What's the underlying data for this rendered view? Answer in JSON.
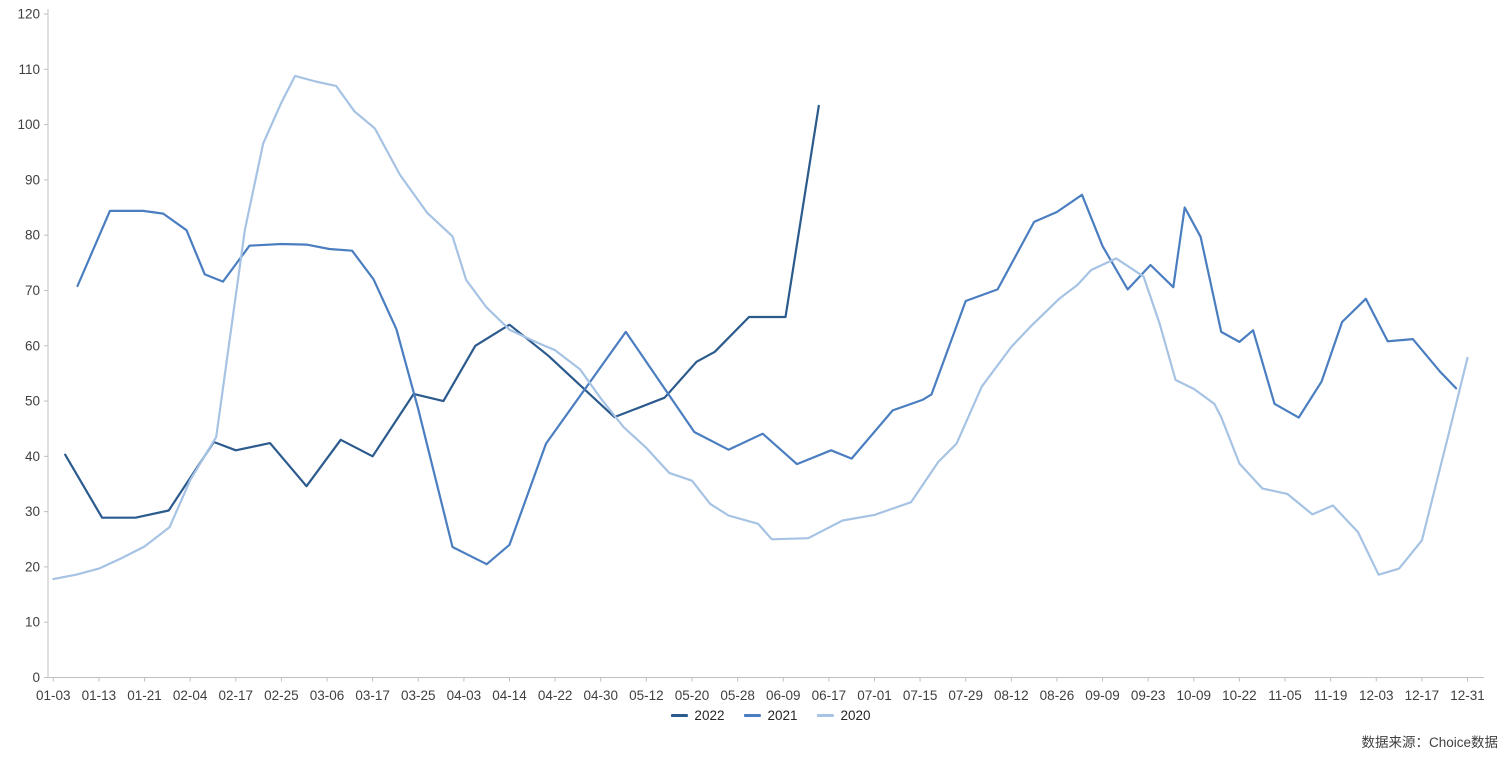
{
  "source_note": "数据来源：Choice数据",
  "chart_data": {
    "type": "line",
    "title": "",
    "xlabel": "",
    "ylabel": "",
    "ylim": [
      0,
      120
    ],
    "y_tick_step": 10,
    "grid": false,
    "legend_position": "bottom-center",
    "axis_color": "#bfbfbf",
    "tick_label_color": "#404040",
    "x_labels": [
      "01-03",
      "01-13",
      "01-21",
      "02-04",
      "02-17",
      "02-25",
      "03-06",
      "03-17",
      "03-25",
      "04-03",
      "04-14",
      "04-22",
      "04-30",
      "05-12",
      "05-20",
      "05-28",
      "06-09",
      "06-17",
      "07-01",
      "07-15",
      "07-29",
      "08-12",
      "08-26",
      "09-09",
      "09-23",
      "10-09",
      "10-22",
      "11-05",
      "11-19",
      "12-03",
      "12-17",
      "12-31"
    ],
    "series": [
      {
        "name": "2022",
        "color": "#2b5a8d",
        "points": [
          [
            0.26,
            40.3
          ],
          [
            1.07,
            28.9
          ],
          [
            1.8,
            28.9
          ],
          [
            2.53,
            30.2
          ],
          [
            3.52,
            42.6
          ],
          [
            4.0,
            41.1
          ],
          [
            4.75,
            42.4
          ],
          [
            5.55,
            34.6
          ],
          [
            6.3,
            43.0
          ],
          [
            7.0,
            40.0
          ],
          [
            7.9,
            51.3
          ],
          [
            8.55,
            50.0
          ],
          [
            9.25,
            60.0
          ],
          [
            10.0,
            63.8
          ],
          [
            10.85,
            58.2
          ],
          [
            12.3,
            47.1
          ],
          [
            13.4,
            50.6
          ],
          [
            14.1,
            57.1
          ],
          [
            14.5,
            58.9
          ],
          [
            15.25,
            65.2
          ],
          [
            16.05,
            65.2
          ],
          [
            16.78,
            103.4
          ]
        ]
      },
      {
        "name": "2021",
        "color": "#4a7ec0",
        "points": [
          [
            0.53,
            70.8
          ],
          [
            1.24,
            84.4
          ],
          [
            1.97,
            84.4
          ],
          [
            2.41,
            83.9
          ],
          [
            2.92,
            80.9
          ],
          [
            3.32,
            72.9
          ],
          [
            3.72,
            71.6
          ],
          [
            4.3,
            78.1
          ],
          [
            5.0,
            78.4
          ],
          [
            5.55,
            78.3
          ],
          [
            6.05,
            77.5
          ],
          [
            6.55,
            77.2
          ],
          [
            7.02,
            72.0
          ],
          [
            7.52,
            63.0
          ],
          [
            8.0,
            48.5
          ],
          [
            8.75,
            23.6
          ],
          [
            9.5,
            20.5
          ],
          [
            10.0,
            24.0
          ],
          [
            10.8,
            42.3
          ],
          [
            12.55,
            62.5
          ],
          [
            14.05,
            44.4
          ],
          [
            14.8,
            41.2
          ],
          [
            15.55,
            44.1
          ],
          [
            16.3,
            38.6
          ],
          [
            17.05,
            41.1
          ],
          [
            17.5,
            39.6
          ],
          [
            18.4,
            48.3
          ],
          [
            19.05,
            50.2
          ],
          [
            19.25,
            51.2
          ],
          [
            20.0,
            68.1
          ],
          [
            20.7,
            70.2
          ],
          [
            21.5,
            82.4
          ],
          [
            22.0,
            84.2
          ],
          [
            22.55,
            87.3
          ],
          [
            23.0,
            78.0
          ],
          [
            23.55,
            70.2
          ],
          [
            24.05,
            74.6
          ],
          [
            24.55,
            70.6
          ],
          [
            24.8,
            85.0
          ],
          [
            25.15,
            79.7
          ],
          [
            25.6,
            62.5
          ],
          [
            26.0,
            60.7
          ],
          [
            26.3,
            62.8
          ],
          [
            26.77,
            49.5
          ],
          [
            27.3,
            47.0
          ],
          [
            27.8,
            53.5
          ],
          [
            28.25,
            64.3
          ],
          [
            28.77,
            68.5
          ],
          [
            29.25,
            60.8
          ],
          [
            29.8,
            61.2
          ],
          [
            30.4,
            55.3
          ],
          [
            30.75,
            52.3
          ]
        ]
      },
      {
        "name": "2020",
        "color": "#a6c3e4",
        "points": [
          [
            0.0,
            17.8
          ],
          [
            0.5,
            18.6
          ],
          [
            1.0,
            19.7
          ],
          [
            1.5,
            21.6
          ],
          [
            2.0,
            23.7
          ],
          [
            2.55,
            27.2
          ],
          [
            3.0,
            35.7
          ],
          [
            3.57,
            43.5
          ],
          [
            4.2,
            81.0
          ],
          [
            4.6,
            96.6
          ],
          [
            5.0,
            104.0
          ],
          [
            5.3,
            108.8
          ],
          [
            5.75,
            107.8
          ],
          [
            6.2,
            107.0
          ],
          [
            6.6,
            102.4
          ],
          [
            7.05,
            99.3
          ],
          [
            7.6,
            90.9
          ],
          [
            8.2,
            84.0
          ],
          [
            8.75,
            79.8
          ],
          [
            9.05,
            71.9
          ],
          [
            9.5,
            66.9
          ],
          [
            10.0,
            62.9
          ],
          [
            10.65,
            60.4
          ],
          [
            11.0,
            59.2
          ],
          [
            11.55,
            55.7
          ],
          [
            12.0,
            50.5
          ],
          [
            12.5,
            45.3
          ],
          [
            13.0,
            41.5
          ],
          [
            13.5,
            37.0
          ],
          [
            14.0,
            35.6
          ],
          [
            14.4,
            31.4
          ],
          [
            14.8,
            29.3
          ],
          [
            15.45,
            27.8
          ],
          [
            15.75,
            25.0
          ],
          [
            16.55,
            25.2
          ],
          [
            17.3,
            28.4
          ],
          [
            18.0,
            29.4
          ],
          [
            18.8,
            31.7
          ],
          [
            19.4,
            39.0
          ],
          [
            19.8,
            42.3
          ],
          [
            20.35,
            52.6
          ],
          [
            21.0,
            59.8
          ],
          [
            21.45,
            63.7
          ],
          [
            22.05,
            68.5
          ],
          [
            22.45,
            71.0
          ],
          [
            22.75,
            73.7
          ],
          [
            23.3,
            75.8
          ],
          [
            23.9,
            72.5
          ],
          [
            24.25,
            64.0
          ],
          [
            24.6,
            53.8
          ],
          [
            25.0,
            52.2
          ],
          [
            25.45,
            49.5
          ],
          [
            25.6,
            47.1
          ],
          [
            26.0,
            38.7
          ],
          [
            26.5,
            34.2
          ],
          [
            27.05,
            33.2
          ],
          [
            27.6,
            29.5
          ],
          [
            28.05,
            31.1
          ],
          [
            28.6,
            26.3
          ],
          [
            29.05,
            18.6
          ],
          [
            29.5,
            19.7
          ],
          [
            30.0,
            24.8
          ],
          [
            30.6,
            44.5
          ],
          [
            31.0,
            57.8
          ]
        ]
      }
    ]
  }
}
